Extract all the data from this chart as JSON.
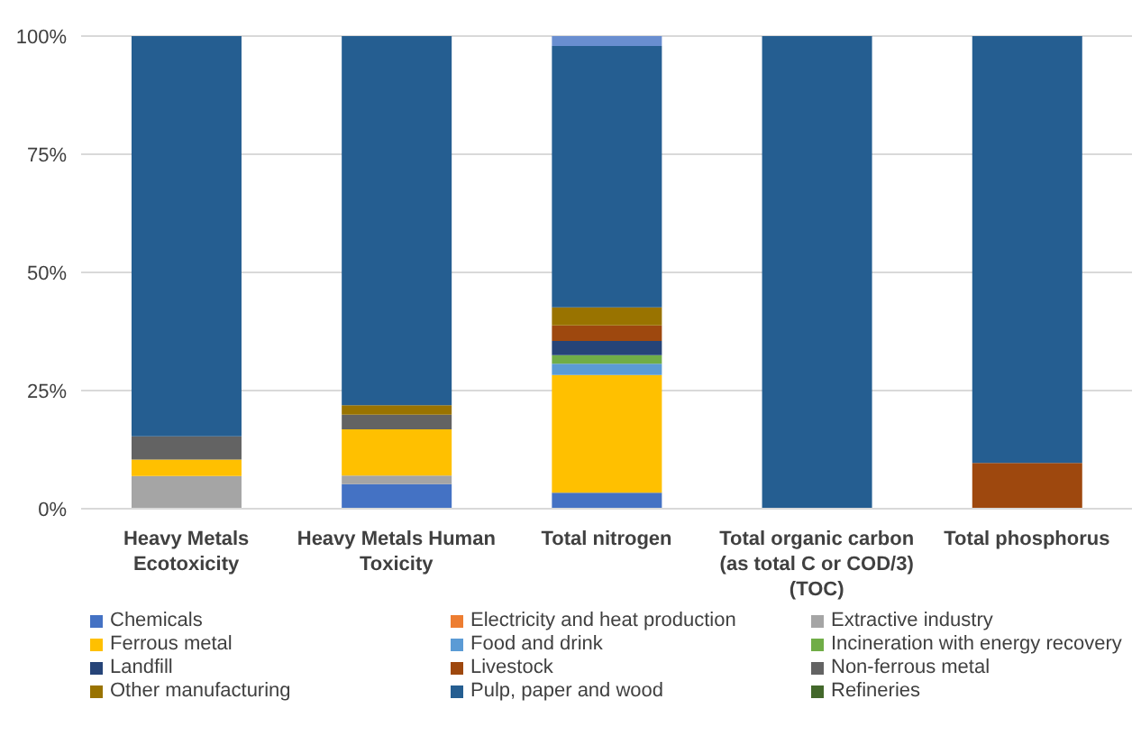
{
  "chart_data": {
    "type": "bar",
    "stacked": true,
    "categories": [
      "Heavy Metals Ecotoxicity",
      "Heavy Metals Human Toxicity",
      "Total nitrogen",
      "Total organic carbon (as total C or COD/3) (TOC)",
      "Total phosphorus"
    ],
    "series": [
      {
        "name": "Chemicals",
        "color": "#4472c4",
        "values": [
          0,
          5.2,
          3.4,
          0,
          0
        ]
      },
      {
        "name": "Electricity and heat production",
        "color": "#ed7d31",
        "values": [
          0,
          0,
          0,
          0,
          0
        ]
      },
      {
        "name": "Extractive industry",
        "color": "#a5a5a5",
        "values": [
          6.9,
          1.8,
          0,
          0,
          0
        ]
      },
      {
        "name": "Ferrous metal",
        "color": "#ffc000",
        "values": [
          3.5,
          9.8,
          24.9,
          0,
          0
        ]
      },
      {
        "name": "Food and drink",
        "color": "#5b9bd5",
        "values": [
          0,
          0,
          2.4,
          0,
          0
        ]
      },
      {
        "name": "Incineration with energy recovery",
        "color": "#70ad47",
        "values": [
          0,
          0,
          1.8,
          0,
          0
        ]
      },
      {
        "name": "Landfill",
        "color": "#264478",
        "values": [
          0,
          0,
          3.0,
          0,
          0
        ]
      },
      {
        "name": "Livestock",
        "color": "#9e480e",
        "values": [
          0,
          0,
          3.3,
          0,
          9.7
        ]
      },
      {
        "name": "Non-ferrous metal",
        "color": "#636363",
        "values": [
          4.9,
          3.1,
          0,
          0,
          0
        ]
      },
      {
        "name": "Other manufacturing",
        "color": "#997300",
        "values": [
          0,
          2.0,
          3.8,
          0,
          0
        ]
      },
      {
        "name": "Pulp, paper and wood",
        "color": "#255e91",
        "values": [
          84.7,
          78.1,
          55.3,
          100,
          90.3
        ]
      },
      {
        "name": "Refineries",
        "color": "#43682b",
        "values": [
          0,
          0,
          0,
          0,
          0
        ]
      },
      {
        "color": "#698ed0",
        "values": [
          0,
          0,
          2.1,
          0,
          0
        ]
      }
    ],
    "ylim": [
      0,
      100
    ],
    "yticks": [
      {
        "value": 0,
        "label": "0%"
      },
      {
        "value": 25,
        "label": "25%"
      },
      {
        "value": 50,
        "label": "50%"
      },
      {
        "value": 75,
        "label": "75%"
      },
      {
        "value": 100,
        "label": "100%"
      }
    ],
    "grid": "y",
    "legend": "bottom"
  }
}
